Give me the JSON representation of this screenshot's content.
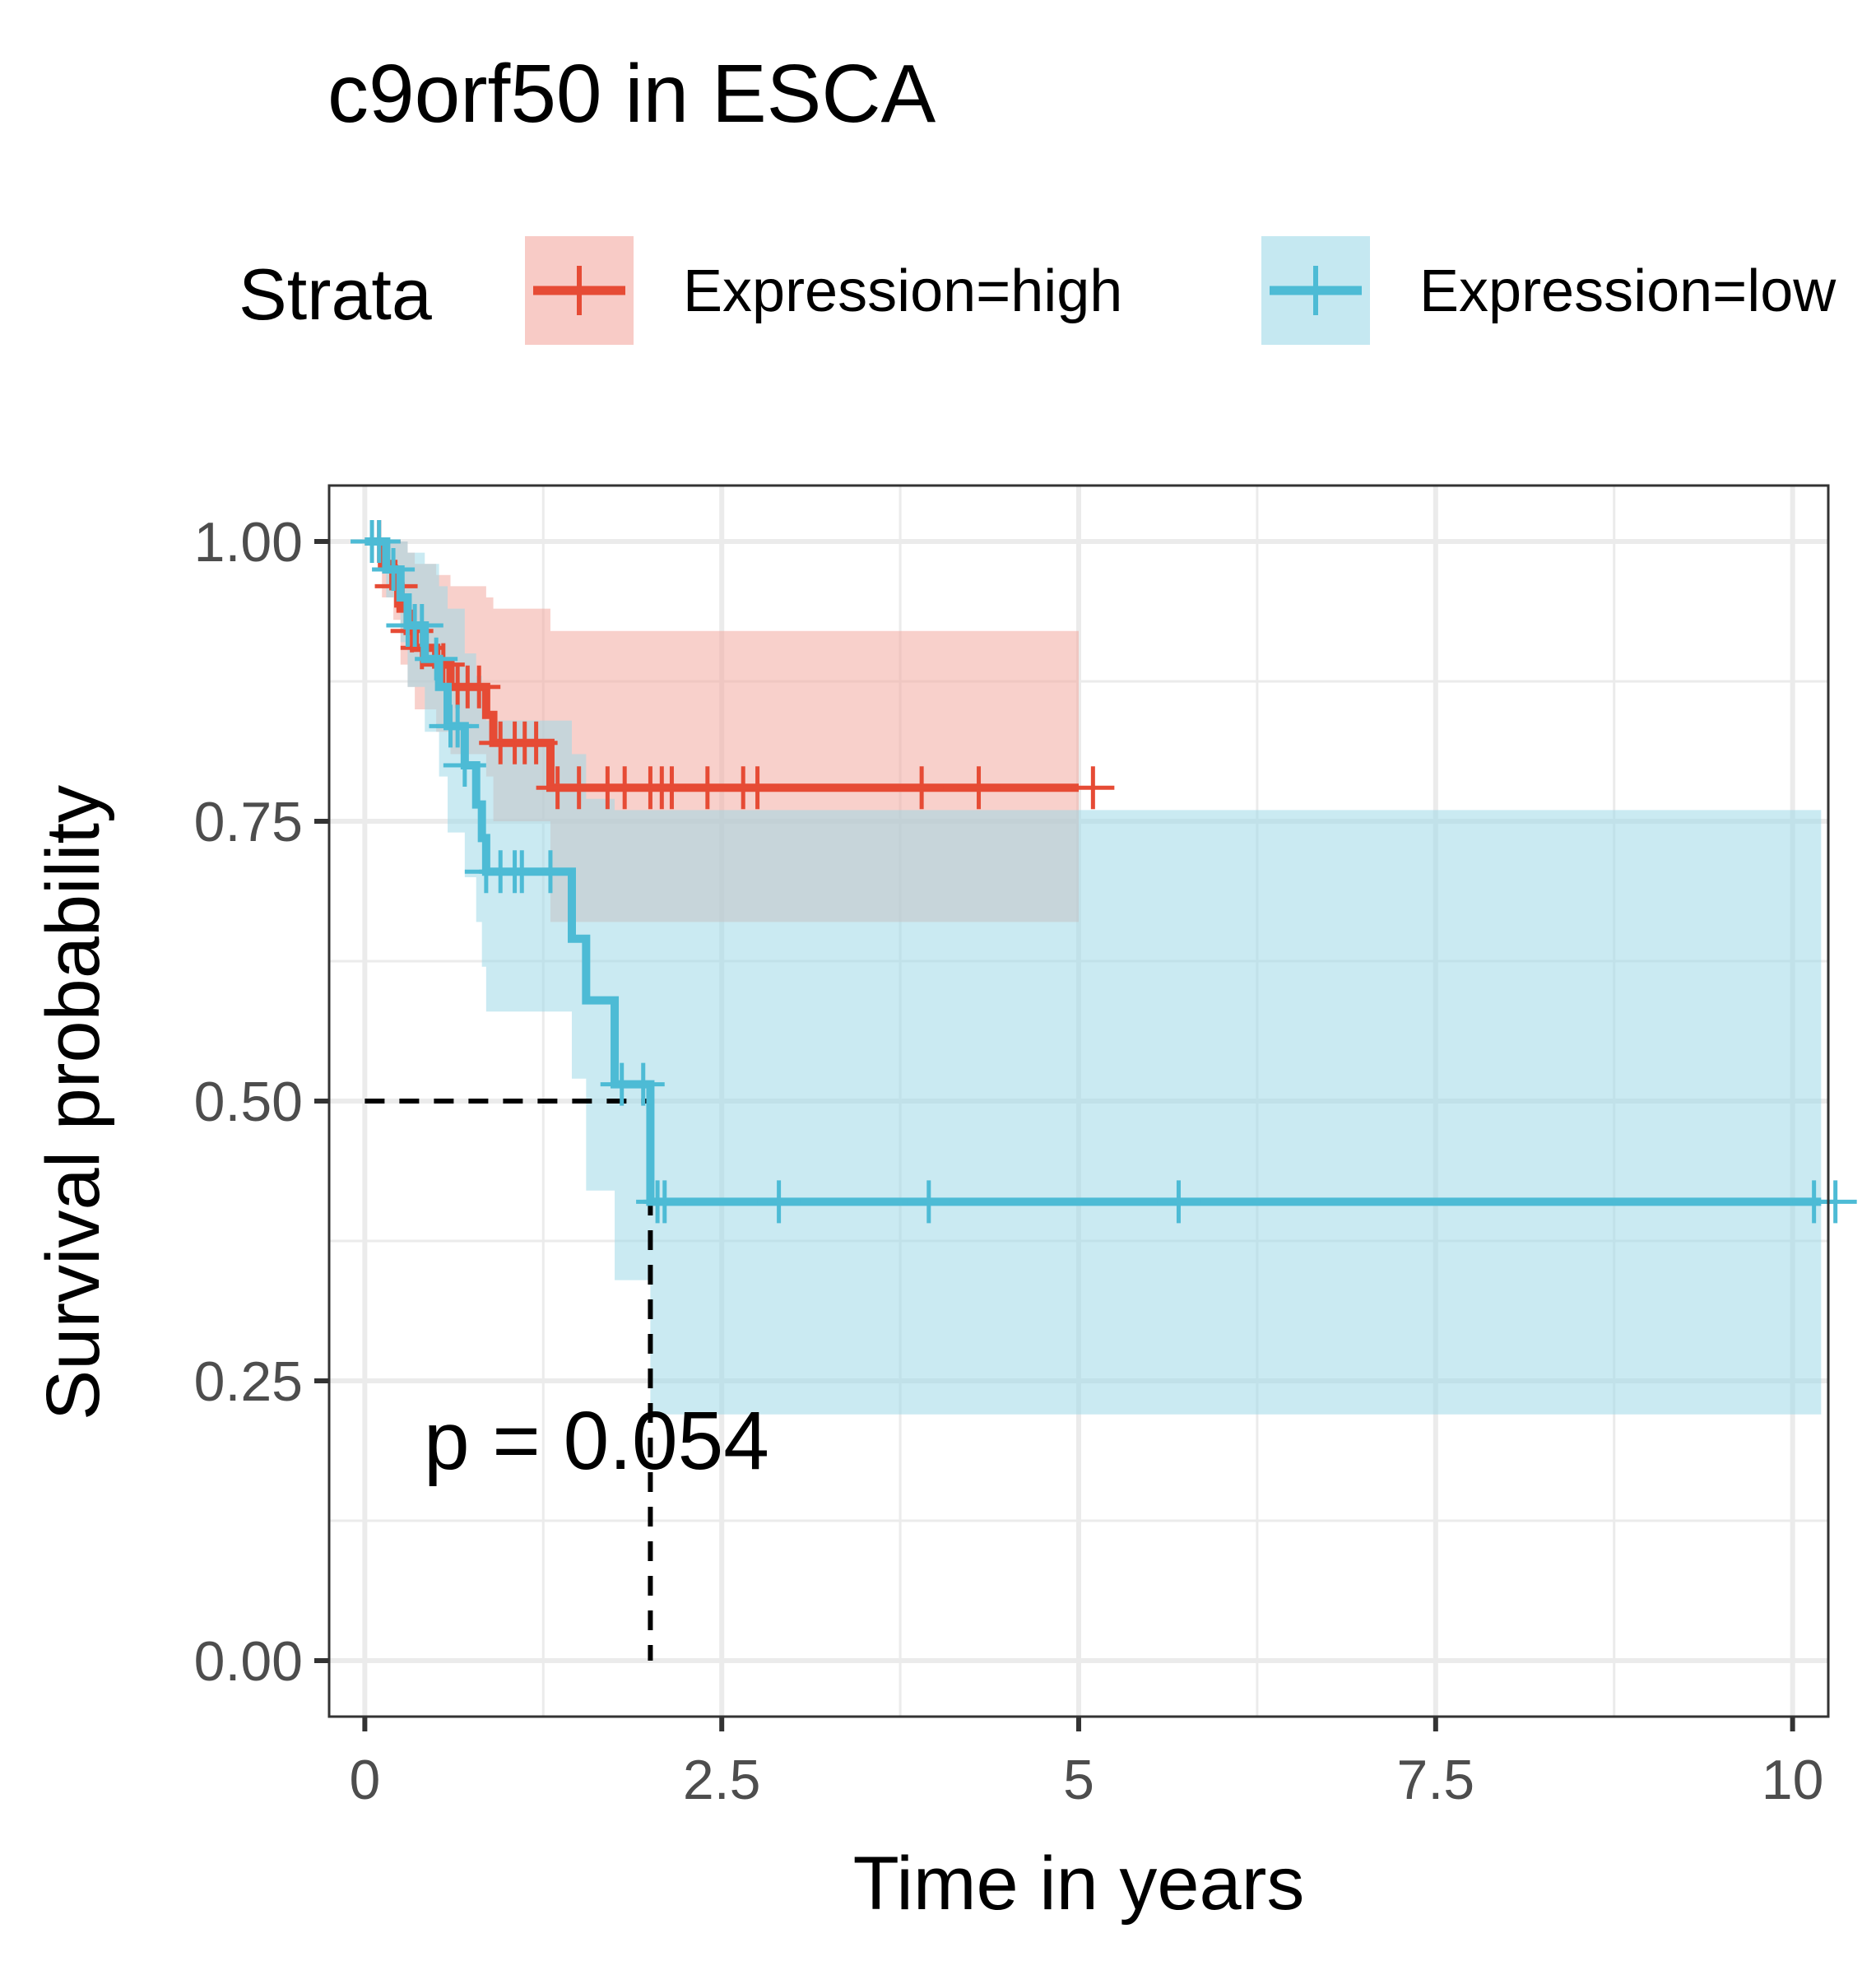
{
  "chart_data": {
    "type": "line",
    "title": "c9orf50 in ESCA",
    "xlabel": "Time in years",
    "ylabel": "Survival probability",
    "xlim": [
      -0.25,
      10.25
    ],
    "ylim": [
      -0.05,
      1.05
    ],
    "xticks": [
      0,
      2.5,
      5,
      7.5,
      10
    ],
    "xtick_labels": [
      "0",
      "2.5",
      "5",
      "7.5",
      "10"
    ],
    "yticks": [
      0,
      0.25,
      0.5,
      0.75,
      1.0
    ],
    "ytick_labels": [
      "0.00",
      "0.25",
      "0.50",
      "0.75",
      "1.00"
    ],
    "grid": true,
    "legend": {
      "title": "Strata",
      "position": "top",
      "entries": [
        "Expression=high",
        "Expression=low"
      ]
    },
    "annotation": "p = 0.054",
    "median_survival": {
      "x": 2.0,
      "y": 0.5
    },
    "series": [
      {
        "name": "Expression=high",
        "color": "#E64B35",
        "band_color": "#F3A9A0",
        "steps": [
          [
            0,
            1.0
          ],
          [
            0.12,
            0.98
          ],
          [
            0.2,
            0.96
          ],
          [
            0.25,
            0.94
          ],
          [
            0.3,
            0.92
          ],
          [
            0.35,
            0.905
          ],
          [
            0.5,
            0.89
          ],
          [
            0.6,
            0.87
          ],
          [
            0.85,
            0.845
          ],
          [
            0.9,
            0.82
          ],
          [
            1.3,
            0.78
          ]
        ],
        "end_x": 5.0,
        "upper": [
          1.0,
          1.0,
          1.0,
          1.0,
          0.99,
          0.98,
          0.97,
          0.96,
          0.95,
          0.94,
          0.92
        ],
        "lower": [
          1.0,
          0.95,
          0.93,
          0.89,
          0.87,
          0.85,
          0.83,
          0.81,
          0.79,
          0.75,
          0.66
        ],
        "censor_x": [
          0.1,
          0.22,
          0.33,
          0.4,
          0.55,
          0.65,
          0.72,
          0.8,
          0.95,
          1.05,
          1.12,
          1.2,
          1.35,
          1.5,
          1.7,
          1.82,
          2.0,
          2.08,
          2.15,
          2.4,
          2.65,
          2.75,
          3.9,
          4.3,
          5.1
        ]
      },
      {
        "name": "Expression=low",
        "color": "#4DBBD5",
        "band_color": "#9FD8E7",
        "steps": [
          [
            0,
            1.0
          ],
          [
            0.15,
            0.975
          ],
          [
            0.25,
            0.95
          ],
          [
            0.3,
            0.925
          ],
          [
            0.42,
            0.895
          ],
          [
            0.52,
            0.87
          ],
          [
            0.58,
            0.835
          ],
          [
            0.7,
            0.8
          ],
          [
            0.78,
            0.765
          ],
          [
            0.82,
            0.735
          ],
          [
            0.85,
            0.705
          ],
          [
            1.45,
            0.645
          ],
          [
            1.55,
            0.59
          ],
          [
            1.75,
            0.515
          ],
          [
            2.0,
            0.41
          ]
        ],
        "end_x": 10.2,
        "upper": [
          1.0,
          1.0,
          1.0,
          0.99,
          0.98,
          0.96,
          0.94,
          0.9,
          0.88,
          0.87,
          0.84,
          0.81,
          0.77,
          0.76,
          0.76
        ],
        "lower": [
          1.0,
          0.95,
          0.91,
          0.87,
          0.83,
          0.79,
          0.74,
          0.7,
          0.66,
          0.62,
          0.58,
          0.52,
          0.42,
          0.34,
          0.22
        ],
        "censor_x": [
          0.05,
          0.1,
          0.2,
          0.3,
          0.35,
          0.4,
          0.5,
          0.6,
          0.65,
          0.7,
          0.85,
          0.95,
          1.05,
          1.1,
          1.3,
          1.8,
          1.95,
          2.05,
          2.1,
          2.9,
          3.95,
          5.7,
          10.15,
          10.3
        ]
      }
    ]
  }
}
